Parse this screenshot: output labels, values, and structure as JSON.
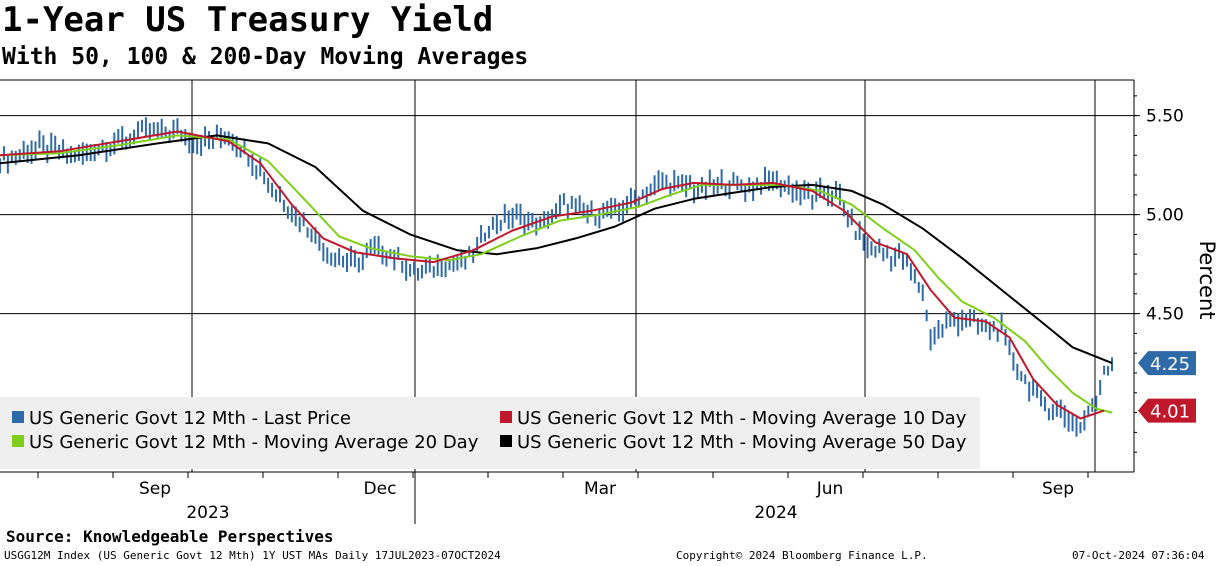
{
  "header": {
    "title": "1-Year US Treasury Yield",
    "subtitle": "With 50, 100 & 200-Day Moving Averages"
  },
  "source": "Source: Knowledgeable Perspectives",
  "footer": {
    "left": "USGG12M Index (US Generic Govt 12 Mth) 1Y UST MAs  Daily 17JUL2023-07OCT2024",
    "center": "Copyright© 2024 Bloomberg Finance L.P.",
    "right": "07-Oct-2024 07:36:04"
  },
  "colors": {
    "price": "#2f6aa8",
    "ma10": "#c0182b",
    "ma20": "#7fcf1a",
    "ma50": "#000000",
    "grid": "#000000"
  },
  "chart_data": {
    "type": "line",
    "ylabel": "Percent",
    "ylim": [
      3.7,
      5.68
    ],
    "yticks": [
      4.5,
      5.0,
      5.5
    ],
    "ytick_labels": [
      "4.50",
      "5.00",
      "5.50"
    ],
    "x_months": [
      "Sep",
      "Dec",
      "Mar",
      "Jun",
      "Sep"
    ],
    "x_years": [
      "2023",
      "2024"
    ],
    "date_range": [
      "2023-07-17",
      "2024-10-07"
    ],
    "current_labels": [
      {
        "series": "Last Price",
        "value": 4.25,
        "label": "4.25",
        "color": "#2f6aa8"
      },
      {
        "series": "Moving Average 10 Day",
        "value": 4.01,
        "label": "4.01",
        "color": "#c0182b"
      }
    ],
    "series": [
      {
        "name": "US Generic Govt 12 Mth - Last Price",
        "key": "price",
        "points": [
          [
            0,
            5.27
          ],
          [
            10,
            5.34
          ],
          [
            20,
            5.3
          ],
          [
            30,
            5.37
          ],
          [
            38,
            5.43
          ],
          [
            45,
            5.42
          ],
          [
            50,
            5.36
          ],
          [
            57,
            5.4
          ],
          [
            62,
            5.33
          ],
          [
            66,
            5.22
          ],
          [
            72,
            5.06
          ],
          [
            78,
            4.93
          ],
          [
            85,
            4.78
          ],
          [
            90,
            4.75
          ],
          [
            95,
            4.82
          ],
          [
            100,
            4.79
          ],
          [
            105,
            4.7
          ],
          [
            112,
            4.74
          ],
          [
            118,
            4.76
          ],
          [
            124,
            4.94
          ],
          [
            130,
            4.99
          ],
          [
            137,
            4.95
          ],
          [
            143,
            5.05
          ],
          [
            150,
            5.0
          ],
          [
            157,
            5.02
          ],
          [
            163,
            5.1
          ],
          [
            168,
            5.17
          ],
          [
            172,
            5.15
          ],
          [
            178,
            5.13
          ],
          [
            184,
            5.16
          ],
          [
            190,
            5.14
          ],
          [
            196,
            5.17
          ],
          [
            202,
            5.12
          ],
          [
            206,
            5.09
          ],
          [
            212,
            5.12
          ],
          [
            217,
            4.92
          ],
          [
            220,
            4.83
          ],
          [
            225,
            4.8
          ],
          [
            229,
            4.78
          ],
          [
            234,
            4.6
          ],
          [
            236,
            4.38
          ],
          [
            240,
            4.45
          ],
          [
            245,
            4.48
          ],
          [
            250,
            4.42
          ],
          [
            254,
            4.42
          ],
          [
            258,
            4.22
          ],
          [
            262,
            4.1
          ],
          [
            266,
            4.03
          ],
          [
            270,
            3.99
          ],
          [
            274,
            3.93
          ],
          [
            276,
            4.01
          ],
          [
            278,
            4.05
          ],
          [
            280,
            4.22
          ],
          [
            282,
            4.25
          ]
        ]
      },
      {
        "name": "US Generic Govt 12 Mth - Moving Average 10 Day",
        "key": "ma10",
        "points": [
          [
            0,
            5.3
          ],
          [
            15,
            5.32
          ],
          [
            30,
            5.37
          ],
          [
            45,
            5.42
          ],
          [
            58,
            5.37
          ],
          [
            66,
            5.26
          ],
          [
            74,
            5.05
          ],
          [
            82,
            4.88
          ],
          [
            90,
            4.81
          ],
          [
            100,
            4.78
          ],
          [
            110,
            4.76
          ],
          [
            120,
            4.82
          ],
          [
            130,
            4.92
          ],
          [
            140,
            4.99
          ],
          [
            150,
            5.02
          ],
          [
            160,
            5.06
          ],
          [
            168,
            5.13
          ],
          [
            176,
            5.16
          ],
          [
            186,
            5.15
          ],
          [
            196,
            5.16
          ],
          [
            206,
            5.12
          ],
          [
            214,
            5.02
          ],
          [
            222,
            4.86
          ],
          [
            230,
            4.8
          ],
          [
            236,
            4.62
          ],
          [
            242,
            4.48
          ],
          [
            250,
            4.46
          ],
          [
            256,
            4.38
          ],
          [
            262,
            4.17
          ],
          [
            268,
            4.04
          ],
          [
            274,
            3.97
          ],
          [
            280,
            4.01
          ]
        ]
      },
      {
        "name": "US Generic Govt 12 Mth - Moving Average 20 Day",
        "key": "ma20",
        "points": [
          [
            0,
            5.3
          ],
          [
            15,
            5.31
          ],
          [
            30,
            5.35
          ],
          [
            45,
            5.4
          ],
          [
            58,
            5.38
          ],
          [
            68,
            5.27
          ],
          [
            78,
            5.06
          ],
          [
            86,
            4.89
          ],
          [
            94,
            4.83
          ],
          [
            104,
            4.79
          ],
          [
            114,
            4.77
          ],
          [
            122,
            4.8
          ],
          [
            132,
            4.89
          ],
          [
            142,
            4.97
          ],
          [
            152,
            5.0
          ],
          [
            162,
            5.04
          ],
          [
            170,
            5.1
          ],
          [
            178,
            5.15
          ],
          [
            188,
            5.15
          ],
          [
            198,
            5.15
          ],
          [
            208,
            5.12
          ],
          [
            216,
            5.05
          ],
          [
            224,
            4.93
          ],
          [
            232,
            4.82
          ],
          [
            238,
            4.68
          ],
          [
            244,
            4.56
          ],
          [
            252,
            4.48
          ],
          [
            260,
            4.36
          ],
          [
            266,
            4.22
          ],
          [
            272,
            4.1
          ],
          [
            278,
            4.02
          ],
          [
            282,
            4.0
          ]
        ]
      },
      {
        "name": "US Generic Govt 12 Mth - Moving Average 50 Day",
        "key": "ma50",
        "points": [
          [
            0,
            5.26
          ],
          [
            20,
            5.3
          ],
          [
            40,
            5.36
          ],
          [
            55,
            5.4
          ],
          [
            68,
            5.36
          ],
          [
            80,
            5.24
          ],
          [
            92,
            5.02
          ],
          [
            104,
            4.9
          ],
          [
            116,
            4.82
          ],
          [
            126,
            4.8
          ],
          [
            136,
            4.83
          ],
          [
            146,
            4.88
          ],
          [
            156,
            4.94
          ],
          [
            166,
            5.03
          ],
          [
            176,
            5.08
          ],
          [
            186,
            5.11
          ],
          [
            196,
            5.14
          ],
          [
            206,
            5.15
          ],
          [
            216,
            5.12
          ],
          [
            224,
            5.05
          ],
          [
            234,
            4.93
          ],
          [
            244,
            4.78
          ],
          [
            254,
            4.62
          ],
          [
            264,
            4.46
          ],
          [
            272,
            4.33
          ],
          [
            282,
            4.25
          ]
        ]
      }
    ],
    "legend": [
      {
        "label": "US Generic Govt 12 Mth - Last Price",
        "color": "#2f6aa8"
      },
      {
        "label": "US Generic Govt 12 Mth - Moving Average 10 Day",
        "color": "#c0182b"
      },
      {
        "label": "US Generic Govt 12 Mth - Moving Average 20 Day",
        "color": "#7fcf1a"
      },
      {
        "label": "US Generic Govt 12 Mth - Moving Average 50 Day",
        "color": "#000000"
      }
    ]
  }
}
